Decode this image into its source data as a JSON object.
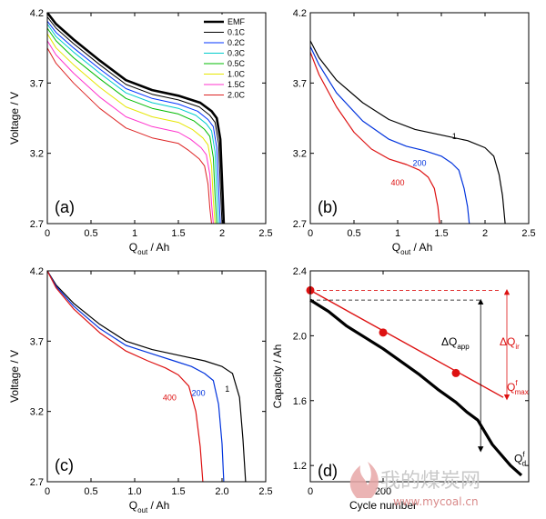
{
  "chart_data": [
    {
      "panel": "(a)",
      "type": "line",
      "xlabel": "Q",
      "xlabel_sub": "out",
      "xlabel_unit": " / Ah",
      "ylabel": "Voltage  /  V",
      "xlim": [
        0,
        2.5
      ],
      "ylim": [
        2.7,
        4.2
      ],
      "xticks": [
        "0",
        "0.5",
        "1",
        "1.5",
        "2",
        "2.5"
      ],
      "yticks": [
        "2.7",
        "3.2",
        "3.7",
        "4.2"
      ],
      "legend": "top-right",
      "series": [
        {
          "name": "EMF",
          "color": "#000000",
          "width": 2.6,
          "x": [
            0,
            0.1,
            0.3,
            0.6,
            0.9,
            1.2,
            1.5,
            1.75,
            1.88,
            1.94,
            1.98,
            2.0,
            2.02
          ],
          "y": [
            4.2,
            4.12,
            4.01,
            3.86,
            3.72,
            3.65,
            3.61,
            3.56,
            3.5,
            3.45,
            3.3,
            3.0,
            2.7
          ]
        },
        {
          "name": "0.1C",
          "color": "#000000",
          "width": 1,
          "x": [
            0,
            0.1,
            0.3,
            0.6,
            0.9,
            1.2,
            1.5,
            1.74,
            1.86,
            1.92,
            1.96,
            1.98,
            2.0
          ],
          "y": [
            4.17,
            4.09,
            3.98,
            3.83,
            3.69,
            3.62,
            3.58,
            3.53,
            3.47,
            3.42,
            3.27,
            2.97,
            2.7
          ]
        },
        {
          "name": "0.2C",
          "color": "#0033ff",
          "width": 1,
          "x": [
            0,
            0.1,
            0.3,
            0.6,
            0.9,
            1.2,
            1.5,
            1.72,
            1.84,
            1.9,
            1.94,
            1.96,
            1.98
          ],
          "y": [
            4.14,
            4.06,
            3.95,
            3.8,
            3.66,
            3.59,
            3.55,
            3.5,
            3.44,
            3.39,
            3.24,
            2.95,
            2.7
          ]
        },
        {
          "name": "0.3C",
          "color": "#00cccc",
          "width": 1,
          "x": [
            0,
            0.1,
            0.3,
            0.6,
            0.9,
            1.2,
            1.5,
            1.7,
            1.82,
            1.88,
            1.92,
            1.94,
            1.96
          ],
          "y": [
            4.12,
            4.03,
            3.92,
            3.77,
            3.63,
            3.56,
            3.52,
            3.47,
            3.41,
            3.36,
            3.21,
            2.93,
            2.7
          ]
        },
        {
          "name": "0.5C",
          "color": "#00bb00",
          "width": 1,
          "x": [
            0,
            0.1,
            0.3,
            0.6,
            0.9,
            1.2,
            1.5,
            1.68,
            1.8,
            1.86,
            1.9,
            1.92,
            1.94
          ],
          "y": [
            4.09,
            4.0,
            3.88,
            3.73,
            3.59,
            3.52,
            3.48,
            3.43,
            3.37,
            3.32,
            3.17,
            2.9,
            2.7
          ]
        },
        {
          "name": "1.0C",
          "color": "#e6e600",
          "width": 1,
          "x": [
            0,
            0.1,
            0.3,
            0.6,
            0.9,
            1.2,
            1.5,
            1.66,
            1.78,
            1.84,
            1.88,
            1.9,
            1.92
          ],
          "y": [
            4.05,
            3.95,
            3.83,
            3.67,
            3.53,
            3.46,
            3.42,
            3.37,
            3.31,
            3.26,
            3.11,
            2.87,
            2.7
          ]
        },
        {
          "name": "1.5C",
          "color": "#ff33cc",
          "width": 1,
          "x": [
            0,
            0.1,
            0.3,
            0.6,
            0.9,
            1.2,
            1.5,
            1.64,
            1.76,
            1.82,
            1.86,
            1.88,
            1.9
          ],
          "y": [
            4.0,
            3.9,
            3.77,
            3.6,
            3.46,
            3.39,
            3.35,
            3.3,
            3.24,
            3.19,
            3.05,
            2.84,
            2.7
          ]
        },
        {
          "name": "2.0C",
          "color": "#dd2222",
          "width": 1,
          "x": [
            0,
            0.1,
            0.3,
            0.6,
            0.9,
            1.2,
            1.5,
            1.62,
            1.74,
            1.8,
            1.84,
            1.86,
            1.88
          ],
          "y": [
            3.95,
            3.84,
            3.7,
            3.52,
            3.38,
            3.31,
            3.27,
            3.22,
            3.16,
            3.11,
            2.98,
            2.81,
            2.7
          ]
        }
      ]
    },
    {
      "panel": "(b)",
      "type": "line",
      "xlabel": "Q",
      "xlabel_sub": "out",
      "xlabel_unit": " / Ah",
      "ylabel": "",
      "xlim": [
        0,
        2.5
      ],
      "ylim": [
        2.7,
        4.2
      ],
      "xticks": [
        "0",
        "0.5",
        "1",
        "1.5",
        "2",
        "2.5"
      ],
      "yticks": [
        "2.7",
        "3.2",
        "3.7",
        "4.2"
      ],
      "series": [
        {
          "label": "1",
          "color": "#000000",
          "x": [
            0,
            0.1,
            0.3,
            0.6,
            0.9,
            1.2,
            1.5,
            1.8,
            2.0,
            2.1,
            2.16,
            2.2,
            2.23
          ],
          "y": [
            4.0,
            3.88,
            3.72,
            3.56,
            3.44,
            3.37,
            3.33,
            3.29,
            3.24,
            3.18,
            3.05,
            2.9,
            2.7
          ]
        },
        {
          "label": "200",
          "color": "#0033dd",
          "x": [
            0,
            0.1,
            0.3,
            0.6,
            0.9,
            1.1,
            1.3,
            1.5,
            1.62,
            1.7,
            1.76,
            1.8,
            1.82
          ],
          "y": [
            3.96,
            3.83,
            3.63,
            3.43,
            3.3,
            3.25,
            3.22,
            3.18,
            3.13,
            3.08,
            2.95,
            2.82,
            2.7
          ]
        },
        {
          "label": "400",
          "color": "#dd1111",
          "x": [
            0,
            0.1,
            0.3,
            0.5,
            0.7,
            0.9,
            1.1,
            1.25,
            1.35,
            1.42,
            1.46,
            1.48
          ],
          "y": [
            3.92,
            3.76,
            3.53,
            3.35,
            3.23,
            3.16,
            3.12,
            3.08,
            3.03,
            2.95,
            2.82,
            2.7
          ]
        }
      ],
      "labels": [
        {
          "text": "1",
          "x": 1.65,
          "y": 3.3,
          "color": "#000000"
        },
        {
          "text": "200",
          "x": 1.25,
          "y": 3.11,
          "color": "#0033dd"
        },
        {
          "text": "400",
          "x": 1.0,
          "y": 2.97,
          "color": "#dd1111"
        }
      ]
    },
    {
      "panel": "(c)",
      "type": "line",
      "xlabel": "Q",
      "xlabel_sub": "out",
      "xlabel_unit": " / Ah",
      "ylabel": "Voltage  /  V",
      "xlim": [
        0,
        2.5
      ],
      "ylim": [
        2.7,
        4.2
      ],
      "xticks": [
        "0",
        "0.5",
        "1.0",
        "1.5",
        "2.0",
        "2.5"
      ],
      "yticks": [
        "2.7",
        "3.2",
        "3.7",
        "4.2"
      ],
      "series": [
        {
          "label": "1",
          "color": "#000000",
          "x": [
            0,
            0.1,
            0.3,
            0.6,
            0.9,
            1.2,
            1.5,
            1.8,
            2.0,
            2.12,
            2.2,
            2.24,
            2.27
          ],
          "y": [
            4.2,
            4.1,
            3.97,
            3.82,
            3.7,
            3.64,
            3.6,
            3.56,
            3.52,
            3.47,
            3.3,
            3.0,
            2.7
          ]
        },
        {
          "label": "200",
          "color": "#0033dd",
          "x": [
            0,
            0.1,
            0.3,
            0.6,
            0.9,
            1.2,
            1.45,
            1.65,
            1.8,
            1.9,
            1.96,
            2.0,
            2.02
          ],
          "y": [
            4.2,
            4.09,
            3.95,
            3.79,
            3.67,
            3.61,
            3.56,
            3.52,
            3.47,
            3.42,
            3.25,
            2.97,
            2.7
          ]
        },
        {
          "label": "400",
          "color": "#dd1111",
          "x": [
            0,
            0.1,
            0.3,
            0.6,
            0.9,
            1.15,
            1.35,
            1.5,
            1.62,
            1.7,
            1.75,
            1.78
          ],
          "y": [
            4.2,
            4.08,
            3.93,
            3.76,
            3.63,
            3.56,
            3.51,
            3.46,
            3.38,
            3.2,
            2.95,
            2.7
          ]
        }
      ],
      "labels": [
        {
          "text": "1",
          "x": 2.06,
          "y": 3.34,
          "color": "#000000"
        },
        {
          "text": "200",
          "x": 1.73,
          "y": 3.31,
          "color": "#0033dd"
        },
        {
          "text": "400",
          "x": 1.4,
          "y": 3.28,
          "color": "#dd1111"
        }
      ]
    },
    {
      "panel": "(d)",
      "type": "line",
      "xlabel": "Cycle number",
      "ylabel": "Capacity  /  Ah",
      "xlim": [
        0,
        600
      ],
      "ylim": [
        1.1,
        2.4
      ],
      "xticks": [
        {
          "v": 0,
          "t": "0"
        },
        {
          "v": 200,
          "t": "200"
        }
      ],
      "yticks": [
        {
          "v": 1.2,
          "t": "1.2"
        },
        {
          "v": 1.6,
          "t": "1.6"
        },
        {
          "v": 2.0,
          "t": "2.0"
        },
        {
          "v": 2.4,
          "t": "2.4"
        }
      ],
      "series": [
        {
          "name": "Q_max^f",
          "color": "#dd1111",
          "x": [
            0,
            600
          ],
          "y": [
            2.28,
            1.55
          ],
          "markers": [
            [
              0,
              2.28
            ],
            [
              200,
              2.02
            ],
            [
              400,
              1.77
            ]
          ]
        },
        {
          "name": "Q_d^f",
          "color": "#000000",
          "x": [
            0,
            50,
            100,
            150,
            200,
            250,
            300,
            350,
            400,
            430,
            460,
            500,
            550,
            580
          ],
          "y": [
            2.22,
            2.15,
            2.06,
            1.99,
            1.92,
            1.84,
            1.76,
            1.67,
            1.59,
            1.53,
            1.48,
            1.33,
            1.2,
            1.14
          ]
        }
      ],
      "annotations": {
        "dq_app": "ΔQ",
        "dq_app_sub": "app",
        "dq_ir": "ΔQ",
        "dq_ir_sub": "ir",
        "qmax": "Q",
        "qmax_sup": "f",
        "qmax_sub": "max",
        "qd": "Q",
        "qd_sup": "f",
        "qd_sub": "d"
      }
    }
  ],
  "watermark": {
    "text": "我的煤炭网",
    "url": "www.mycoal.cn"
  }
}
